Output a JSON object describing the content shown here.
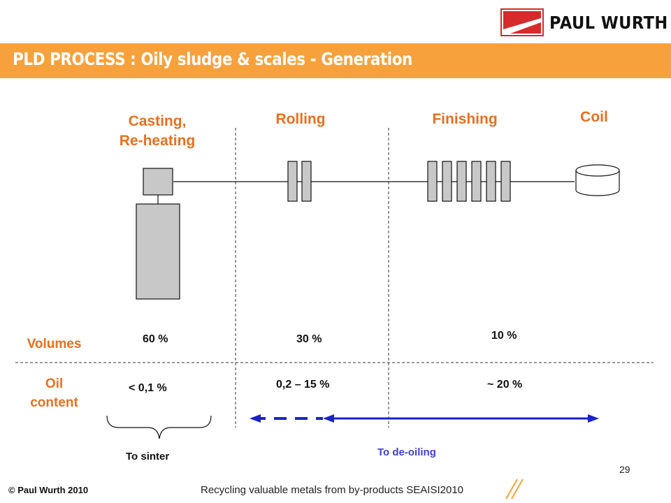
{
  "header": {
    "title": "PLD PROCESS : Oily sludge & scales - Generation",
    "brand": "PAUL WURTH"
  },
  "stages": {
    "casting": "Casting,",
    "casting_line2": "Re-heating",
    "rolling": "Rolling",
    "finishing": "Finishing",
    "coil": "Coil"
  },
  "rows": {
    "volumes": "Volumes",
    "oil": "Oil",
    "oil_line2": "content"
  },
  "volumes": {
    "casting": "60 %",
    "rolling": "30 %",
    "finishing": "10 %"
  },
  "oil_content": {
    "casting": "< 0,1 %",
    "rolling": "0,2 – 15 %",
    "finishing": "~ 20 %"
  },
  "destinations": {
    "sinter": "To sinter",
    "deoiling": "To de-oiling"
  },
  "footer": {
    "copyright": "© Paul Wurth 2010",
    "event": "Recycling valuable metals from by-products SEAISI2010",
    "page": "29"
  },
  "colors": {
    "title_bar": "#f7a13c",
    "label_orange": "#e8701f",
    "arrow_blue": "#1a22c8",
    "deoiling_text": "#3f3fd0",
    "equipment_fill": "#c8c8c8"
  }
}
